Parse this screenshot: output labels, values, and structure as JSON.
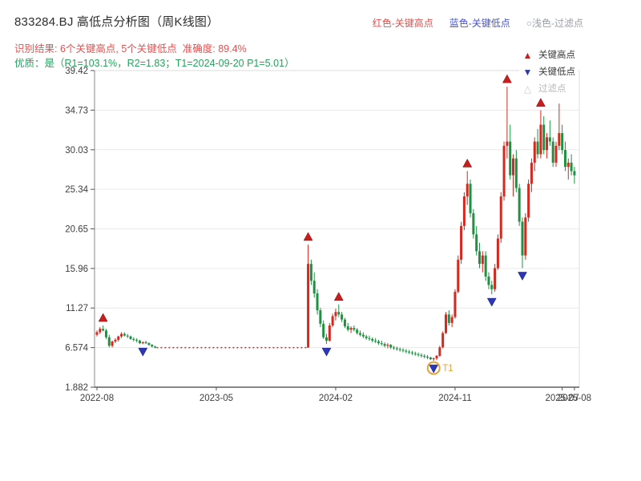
{
  "header": {
    "title": "833284.BJ 高低点分析图（周K线图）",
    "legend_top": [
      {
        "label": "红色-关键高点",
        "color": "#d9534f"
      },
      {
        "label": "蓝色-关键低点",
        "color": "#4a54c4"
      },
      {
        "label": "○浅色-过滤点",
        "color": "#9aa0a6"
      }
    ],
    "result_line": "识别结果: 6个关键高点, 5个关键低点  准确度: 89.4%",
    "quality_line": "优质：是（R1=103.1%，R2=1.83；T1=2024-09-20 P1=5.01）"
  },
  "chart_data": {
    "type": "candlestick",
    "title": "833284.BJ 高低点分析图（周K线图）",
    "interval": "weekly",
    "ylim": [
      1.882,
      39.42
    ],
    "y_ticks": [
      39.42,
      34.73,
      30.03,
      25.34,
      20.65,
      15.96,
      11.27,
      6.574,
      1.882
    ],
    "y_tick_labels": [
      "39.42",
      "34.73",
      "30.03",
      "25.34",
      "20.65",
      "15.96",
      "11.27",
      "6.574",
      "1.882"
    ],
    "x_ticks": [
      {
        "week": 0,
        "label": "2022-08"
      },
      {
        "week": 39,
        "label": "2023-05"
      },
      {
        "week": 78,
        "label": "2024-02"
      },
      {
        "week": 117,
        "label": "2024-11"
      },
      {
        "week": 152,
        "label": "2025-07"
      },
      {
        "week": 156,
        "label": "2025-08"
      }
    ],
    "grid": "horizontal",
    "suspension": {
      "start_week": 20,
      "end_week": 69,
      "price": 6.574,
      "style": "dotted-red"
    },
    "candles": [
      [
        0,
        8.1,
        8.6,
        7.9,
        8.4
      ],
      [
        1,
        8.4,
        9.0,
        8.2,
        8.8
      ],
      [
        2,
        8.8,
        9.2,
        8.5,
        8.6
      ],
      [
        3,
        8.6,
        8.8,
        7.6,
        7.8
      ],
      [
        4,
        7.8,
        8.1,
        6.6,
        6.8
      ],
      [
        5,
        6.8,
        7.4,
        6.6,
        7.3
      ],
      [
        6,
        7.3,
        7.7,
        7.1,
        7.5
      ],
      [
        7,
        7.5,
        8.0,
        7.3,
        7.9
      ],
      [
        8,
        7.9,
        8.4,
        7.7,
        8.2
      ],
      [
        9,
        8.2,
        8.4,
        7.9,
        8.0
      ],
      [
        10,
        8.0,
        8.2,
        7.7,
        7.9
      ],
      [
        11,
        7.9,
        8.0,
        7.5,
        7.6
      ],
      [
        12,
        7.6,
        7.8,
        7.3,
        7.5
      ],
      [
        13,
        7.5,
        7.7,
        7.2,
        7.4
      ],
      [
        14,
        7.4,
        7.5,
        7.0,
        7.1
      ],
      [
        15,
        7.1,
        7.3,
        7.0,
        7.2
      ],
      [
        16,
        7.2,
        7.4,
        7.0,
        7.1
      ],
      [
        17,
        7.1,
        7.2,
        6.8,
        6.9
      ],
      [
        18,
        6.9,
        7.0,
        6.6,
        6.7
      ],
      [
        19,
        6.7,
        6.8,
        6.5,
        6.574
      ],
      [
        69,
        6.574,
        18.8,
        6.574,
        16.5
      ],
      [
        70,
        16.5,
        17.0,
        14.0,
        14.5
      ],
      [
        71,
        14.5,
        15.5,
        12.5,
        13.0
      ],
      [
        72,
        13.0,
        13.5,
        10.5,
        11.0
      ],
      [
        73,
        11.0,
        11.3,
        9.0,
        9.4
      ],
      [
        74,
        9.4,
        9.8,
        7.6,
        7.8
      ],
      [
        75,
        7.8,
        8.2,
        7.0,
        7.4
      ],
      [
        76,
        7.4,
        9.5,
        7.3,
        9.2
      ],
      [
        77,
        9.2,
        10.6,
        9.0,
        10.3
      ],
      [
        78,
        10.3,
        11.2,
        9.8,
        10.8
      ],
      [
        79,
        10.8,
        11.7,
        10.2,
        10.5
      ],
      [
        80,
        10.5,
        10.8,
        9.6,
        9.9
      ],
      [
        81,
        9.9,
        10.1,
        8.9,
        9.1
      ],
      [
        82,
        9.1,
        9.5,
        8.5,
        8.7
      ],
      [
        83,
        8.7,
        9.1,
        8.3,
        8.9
      ],
      [
        84,
        8.9,
        9.2,
        8.5,
        8.7
      ],
      [
        85,
        8.7,
        8.9,
        8.1,
        8.3
      ],
      [
        86,
        8.3,
        8.6,
        7.9,
        8.1
      ],
      [
        87,
        8.1,
        8.4,
        7.7,
        7.9
      ],
      [
        88,
        7.9,
        8.1,
        7.5,
        7.7
      ],
      [
        89,
        7.7,
        8.0,
        7.4,
        7.6
      ],
      [
        90,
        7.6,
        7.8,
        7.2,
        7.4
      ],
      [
        91,
        7.4,
        7.7,
        7.1,
        7.3
      ],
      [
        92,
        7.3,
        7.5,
        6.9,
        7.1
      ],
      [
        93,
        7.1,
        7.4,
        6.8,
        7.0
      ],
      [
        94,
        7.0,
        7.2,
        6.6,
        6.8
      ],
      [
        95,
        6.8,
        7.1,
        6.5,
        6.9
      ],
      [
        96,
        6.9,
        7.0,
        6.4,
        6.6
      ],
      [
        97,
        6.6,
        6.8,
        6.3,
        6.5
      ],
      [
        98,
        6.5,
        6.7,
        6.2,
        6.4
      ],
      [
        99,
        6.4,
        6.6,
        6.1,
        6.3
      ],
      [
        100,
        6.3,
        6.5,
        6.0,
        6.2
      ],
      [
        101,
        6.2,
        6.4,
        5.9,
        6.1
      ],
      [
        102,
        6.1,
        6.3,
        5.8,
        6.0
      ],
      [
        103,
        6.0,
        6.2,
        5.7,
        5.9
      ],
      [
        104,
        5.9,
        6.1,
        5.6,
        5.8
      ],
      [
        105,
        5.8,
        6.0,
        5.5,
        5.7
      ],
      [
        106,
        5.7,
        5.9,
        5.4,
        5.6
      ],
      [
        107,
        5.6,
        5.8,
        5.3,
        5.5
      ],
      [
        108,
        5.5,
        5.7,
        5.2,
        5.4
      ],
      [
        109,
        5.4,
        5.5,
        5.1,
        5.2
      ],
      [
        110,
        5.2,
        5.4,
        5.01,
        5.3
      ],
      [
        111,
        5.3,
        5.7,
        5.1,
        5.6
      ],
      [
        112,
        5.6,
        6.8,
        5.5,
        6.6
      ],
      [
        113,
        6.6,
        8.5,
        6.5,
        8.3
      ],
      [
        114,
        8.3,
        10.8,
        8.2,
        10.5
      ],
      [
        115,
        10.5,
        11.0,
        9.2,
        9.5
      ],
      [
        116,
        9.5,
        10.5,
        9.0,
        10.2
      ],
      [
        117,
        10.2,
        13.5,
        10.0,
        13.2
      ],
      [
        118,
        13.2,
        17.5,
        13.0,
        17.0
      ],
      [
        119,
        17.0,
        21.5,
        16.5,
        21.0
      ],
      [
        120,
        21.0,
        25.0,
        20.5,
        24.5
      ],
      [
        121,
        24.5,
        27.5,
        23.5,
        26.0
      ],
      [
        122,
        26.0,
        26.5,
        22.0,
        22.5
      ],
      [
        123,
        22.5,
        23.0,
        19.5,
        20.0
      ],
      [
        124,
        20.0,
        21.0,
        17.5,
        18.0
      ],
      [
        125,
        18.0,
        19.0,
        16.0,
        16.5
      ],
      [
        126,
        16.5,
        18.0,
        15.5,
        17.5
      ],
      [
        127,
        17.5,
        18.0,
        14.5,
        15.0
      ],
      [
        128,
        15.0,
        15.5,
        13.5,
        14.0
      ],
      [
        129,
        14.0,
        14.5,
        12.9,
        13.5
      ],
      [
        130,
        13.5,
        16.5,
        13.2,
        16.0
      ],
      [
        131,
        16.0,
        20.0,
        15.8,
        19.5
      ],
      [
        132,
        19.5,
        25.0,
        19.0,
        24.5
      ],
      [
        133,
        24.5,
        31.0,
        24.0,
        30.5
      ],
      [
        134,
        30.5,
        37.5,
        29.0,
        31.0
      ],
      [
        135,
        31.0,
        33.0,
        26.5,
        27.0
      ],
      [
        136,
        27.0,
        29.5,
        24.5,
        29.0
      ],
      [
        137,
        29.0,
        30.0,
        25.0,
        25.5
      ],
      [
        138,
        25.5,
        26.0,
        21.0,
        21.5
      ],
      [
        139,
        21.5,
        22.0,
        16.0,
        17.5
      ],
      [
        140,
        17.5,
        22.5,
        17.0,
        22.0
      ],
      [
        141,
        22.0,
        26.5,
        21.5,
        26.0
      ],
      [
        142,
        26.0,
        29.0,
        25.0,
        28.5
      ],
      [
        143,
        28.5,
        31.5,
        27.5,
        31.0
      ],
      [
        144,
        31.0,
        32.5,
        29.0,
        29.5
      ],
      [
        145,
        29.5,
        34.7,
        29.0,
        33.0
      ],
      [
        146,
        33.0,
        34.0,
        29.5,
        30.0
      ],
      [
        147,
        30.0,
        32.0,
        29.0,
        31.5
      ],
      [
        148,
        31.5,
        33.5,
        30.5,
        31.0
      ],
      [
        149,
        31.0,
        31.5,
        28.0,
        28.5
      ],
      [
        150,
        28.5,
        31.0,
        28.0,
        30.5
      ],
      [
        151,
        30.5,
        35.5,
        30.0,
        32.0
      ],
      [
        152,
        32.0,
        33.0,
        29.5,
        30.0
      ],
      [
        153,
        30.0,
        31.0,
        27.5,
        28.0
      ],
      [
        154,
        28.0,
        29.0,
        26.5,
        28.5
      ],
      [
        155,
        28.5,
        29.5,
        27.0,
        27.5
      ],
      [
        156,
        27.5,
        28.0,
        26.0,
        27.0
      ]
    ],
    "key_highs": [
      {
        "week": 2,
        "price": 9.2
      },
      {
        "week": 69,
        "price": 18.8
      },
      {
        "week": 79,
        "price": 11.7
      },
      {
        "week": 121,
        "price": 27.5
      },
      {
        "week": 134,
        "price": 37.5
      },
      {
        "week": 145,
        "price": 34.7
      }
    ],
    "key_lows": [
      {
        "week": 15,
        "price": 7.0
      },
      {
        "week": 75,
        "price": 7.0
      },
      {
        "week": 110,
        "price": 5.01
      },
      {
        "week": 129,
        "price": 12.9
      },
      {
        "week": 139,
        "price": 16.0
      }
    ],
    "filter_points": [
      {
        "week": 110,
        "price": 5.01,
        "label": "T1"
      }
    ],
    "legend_items": [
      {
        "label": "关键高点",
        "marker": "up-triangle",
        "color": "#c81e1e"
      },
      {
        "label": "关键低点",
        "marker": "down-triangle",
        "color": "#2b36b8"
      },
      {
        "label": "过滤点",
        "marker": "light-triangle",
        "color": "#c9c9c9"
      }
    ],
    "colors": {
      "up": "#d5281f",
      "down": "#1f9242",
      "key_high": "#c81e1e",
      "key_low": "#2b36b8",
      "filter": "#e5a23c",
      "grid": "#eaeaea",
      "border": "#dcdcdc",
      "axis": "#3f3f3f"
    }
  }
}
